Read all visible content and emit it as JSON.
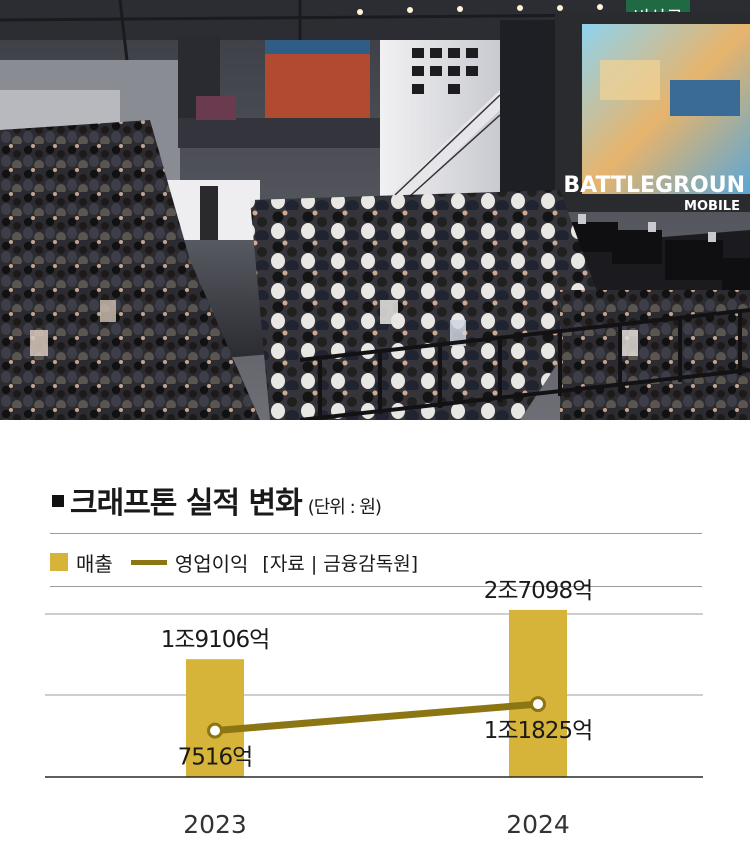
{
  "photo": {
    "description_icon": "exhibition-crowd-photo",
    "signs": {
      "exit_sign": "비상구",
      "game_logo_line1": "BATTLEGROUN",
      "game_logo_line2": "MOBILE"
    }
  },
  "colors": {
    "revenue": "#d6b43a",
    "operating_profit": "#8c7513",
    "text": "#1a1a1a",
    "grid": "#9c9c9c"
  },
  "chart_data": {
    "type": "bar",
    "title": "크래프톤 실적 변화",
    "unit_note": "(단위 : 원)",
    "categories": [
      "2023",
      "2024"
    ],
    "series": [
      {
        "name": "매출",
        "kind": "bar",
        "values": [
          19106,
          27098
        ],
        "labels": [
          "1조9106억",
          "2조7098억"
        ]
      },
      {
        "name": "영업이익",
        "kind": "line",
        "values": [
          7516,
          11825
        ],
        "labels": [
          "7516억",
          "1조1825억"
        ]
      }
    ],
    "source": "[자료 | 금융감독원]",
    "ylim": [
      0,
      30000
    ],
    "grid": true
  }
}
